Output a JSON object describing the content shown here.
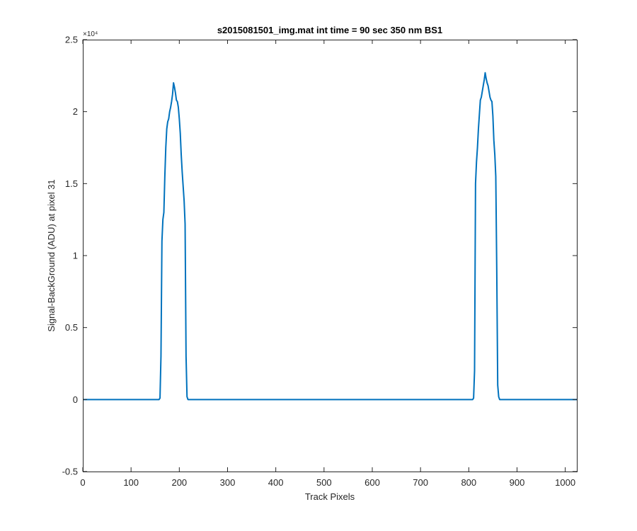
{
  "chart_data": {
    "type": "line",
    "title": "s2015081501_img.mat int time = 90 sec  350 nm BS1",
    "xlabel": "Track Pixels",
    "ylabel": "Signal-BackGround (ADU) at pixel 31",
    "xlim": [
      0,
      1024
    ],
    "ylim": [
      -5000,
      25000
    ],
    "x_ticks": [
      0,
      100,
      200,
      300,
      400,
      500,
      600,
      700,
      800,
      900,
      1000
    ],
    "x_tick_labels": [
      "0",
      "100",
      "200",
      "300",
      "400",
      "500",
      "600",
      "700",
      "800",
      "900",
      "1000"
    ],
    "y_ticks": [
      -5000,
      0,
      5000,
      10000,
      15000,
      20000,
      25000
    ],
    "y_tick_labels": [
      "-0.5",
      "0",
      "0.5",
      "1",
      "1.5",
      "2",
      "2.5"
    ],
    "y_exponent_label": "×10⁴",
    "grid": false,
    "line_color": "#0072BD",
    "series": [
      {
        "x": [
          0,
          100,
          158,
          160,
          162,
          164,
          166,
          168,
          170,
          172,
          174,
          176,
          178,
          180,
          182,
          184,
          186,
          188,
          190,
          192,
          194,
          196,
          198,
          200,
          202,
          204,
          206,
          208,
          210,
          212,
          214,
          216,
          218,
          220,
          222,
          224,
          226,
          228,
          232,
          300,
          400,
          500,
          600,
          700,
          800,
          808,
          810,
          812,
          814,
          816,
          818,
          820,
          822,
          824,
          826,
          828,
          830,
          832,
          834,
          836,
          838,
          840,
          842,
          844,
          846,
          848,
          850,
          852,
          854,
          856,
          858,
          860,
          862,
          864,
          866,
          868,
          870,
          872,
          874,
          876,
          880,
          950,
          1024
        ],
        "y": [
          0,
          0,
          0,
          100,
          3000,
          11000,
          12500,
          13000,
          15500,
          17500,
          18800,
          19300,
          19500,
          20000,
          20300,
          20700,
          21200,
          22000,
          21700,
          21300,
          20800,
          20700,
          20300,
          19500,
          18500,
          17000,
          15800,
          14800,
          13800,
          12200,
          3000,
          200,
          0,
          0,
          0,
          0,
          0,
          0,
          0,
          0,
          0,
          0,
          0,
          0,
          0,
          0,
          100,
          2000,
          15000,
          16500,
          17500,
          18800,
          19800,
          20800,
          21000,
          21400,
          21800,
          22200,
          22700,
          22300,
          22000,
          21800,
          21400,
          21000,
          20800,
          20700,
          19700,
          18000,
          17000,
          15500,
          9000,
          1000,
          200,
          0,
          0,
          0,
          0,
          0,
          0,
          0,
          0,
          0,
          0
        ]
      }
    ]
  }
}
